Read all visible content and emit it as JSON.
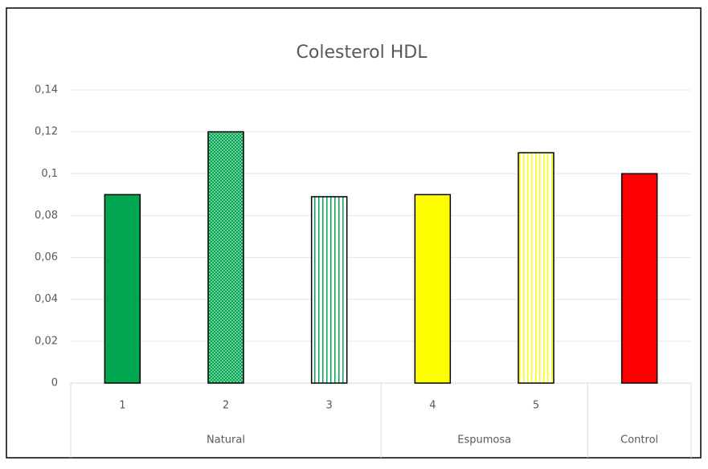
{
  "chart_data": {
    "type": "bar",
    "title": "Colesterol HDL",
    "categories": [
      "1",
      "2",
      "3",
      "4",
      "5",
      null
    ],
    "category_groups": [
      "Natural",
      "Natural",
      "Natural",
      "Espumosa",
      "Espumosa",
      "Control"
    ],
    "values": [
      0.09,
      0.12,
      0.089,
      0.09,
      0.11,
      0.1
    ],
    "colors": [
      "#00a550",
      "#00a550",
      "#00a550",
      "#ffff00",
      "#ffff00",
      "#ff0000"
    ],
    "patterns": [
      "solid",
      "dots",
      "vstripes",
      "solid",
      "vstripes",
      "solid"
    ],
    "ylim": [
      0,
      0.14
    ],
    "yticks": [
      0,
      {
        "value": 0.02,
        "label": "0,02"
      },
      {
        "value": 0.04,
        "label": "0,04"
      },
      {
        "value": 0.06,
        "label": "0,06"
      },
      {
        "value": 0.08,
        "label": "0,08"
      },
      {
        "value": 0.1,
        "label": "0,1"
      },
      {
        "value": 0.12,
        "label": "0,12"
      },
      {
        "value": 0.14,
        "label": "0,14"
      }
    ],
    "grid": true
  }
}
